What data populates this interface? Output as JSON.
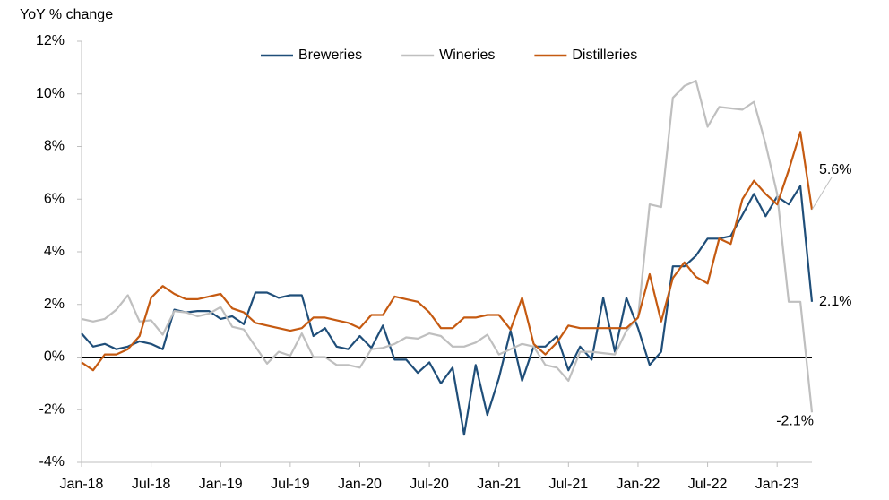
{
  "chart_data": {
    "type": "line",
    "y_axis_label": "YoY % change",
    "categories": [
      "Jan-18",
      null,
      null,
      null,
      null,
      null,
      "Jul-18",
      null,
      null,
      null,
      null,
      null,
      "Jan-19",
      null,
      null,
      null,
      null,
      null,
      "Jul-19",
      null,
      null,
      null,
      null,
      null,
      "Jan-20",
      null,
      null,
      null,
      null,
      null,
      "Jul-20",
      null,
      null,
      null,
      null,
      null,
      "Jan-21",
      null,
      null,
      null,
      null,
      null,
      "Jul-21",
      null,
      null,
      null,
      null,
      null,
      "Jan-22",
      null,
      null,
      null,
      null,
      null,
      "Jul-22",
      null,
      null,
      null,
      null,
      null,
      "Jan-23",
      null,
      null,
      null
    ],
    "series": [
      {
        "name": "Breweries",
        "color": "#1f4e79",
        "values": [
          0.9,
          0.4,
          0.5,
          0.3,
          0.4,
          0.6,
          0.5,
          0.3,
          1.8,
          1.7,
          1.75,
          1.75,
          1.45,
          1.55,
          1.25,
          2.45,
          2.45,
          2.25,
          2.35,
          2.35,
          0.8,
          1.1,
          0.4,
          0.3,
          0.8,
          0.35,
          1.2,
          -0.1,
          -0.1,
          -0.6,
          -0.2,
          -1.0,
          -0.4,
          -2.95,
          -0.3,
          -2.2,
          -0.8,
          1.0,
          -0.9,
          0.4,
          0.4,
          0.8,
          -0.5,
          0.4,
          -0.1,
          2.25,
          0.2,
          2.25,
          1.1,
          -0.3,
          0.2,
          3.45,
          3.45,
          3.85,
          4.5,
          4.5,
          4.6,
          5.4,
          6.2,
          5.35,
          6.1,
          5.8,
          6.5,
          2.1
        ],
        "value_labels": [
          null,
          null,
          null,
          null,
          null,
          null,
          null,
          null,
          null,
          null,
          null,
          null,
          null,
          null,
          null,
          null,
          null,
          null,
          null,
          null,
          null,
          null,
          null,
          null,
          null,
          null,
          null,
          null,
          null,
          null,
          null,
          null,
          null,
          null,
          null,
          null,
          null,
          null,
          null,
          null,
          null,
          null,
          null,
          null,
          null,
          null,
          null,
          null,
          null,
          null,
          null,
          null,
          null,
          null,
          null,
          null,
          null,
          null,
          null,
          null,
          null,
          null,
          null,
          "2.1%"
        ]
      },
      {
        "name": "Wineries",
        "color": "#bfbfbf",
        "values": [
          1.45,
          1.35,
          1.45,
          1.8,
          2.35,
          1.35,
          1.4,
          0.85,
          1.75,
          1.7,
          1.55,
          1.65,
          1.9,
          1.15,
          1.05,
          0.4,
          -0.25,
          0.2,
          0.05,
          0.9,
          0.0,
          0.0,
          -0.3,
          -0.3,
          -0.4,
          0.3,
          0.35,
          0.5,
          0.75,
          0.7,
          0.9,
          0.8,
          0.4,
          0.4,
          0.55,
          0.85,
          0.1,
          0.3,
          0.5,
          0.4,
          -0.3,
          -0.4,
          -0.9,
          0.2,
          0.2,
          0.15,
          0.1,
          1.0,
          1.5,
          5.8,
          5.7,
          9.85,
          10.3,
          10.5,
          8.75,
          9.5,
          9.45,
          9.4,
          9.7,
          8.1,
          6.2,
          2.1,
          2.1,
          -2.1
        ],
        "value_labels": [
          null,
          null,
          null,
          null,
          null,
          null,
          null,
          null,
          null,
          null,
          null,
          null,
          null,
          null,
          null,
          null,
          null,
          null,
          null,
          null,
          null,
          null,
          null,
          null,
          null,
          null,
          null,
          null,
          null,
          null,
          null,
          null,
          null,
          null,
          null,
          null,
          null,
          null,
          null,
          null,
          null,
          null,
          null,
          null,
          null,
          null,
          null,
          null,
          null,
          null,
          null,
          null,
          null,
          null,
          null,
          null,
          null,
          null,
          null,
          null,
          null,
          null,
          null,
          "-2.1%"
        ]
      },
      {
        "name": "Distilleries",
        "color": "#c55a11",
        "values": [
          -0.2,
          -0.5,
          0.1,
          0.1,
          0.3,
          0.8,
          2.25,
          2.7,
          2.4,
          2.2,
          2.2,
          2.3,
          2.4,
          1.85,
          1.7,
          1.3,
          1.2,
          1.1,
          1.0,
          1.1,
          1.5,
          1.5,
          1.4,
          1.3,
          1.1,
          1.6,
          1.6,
          2.3,
          2.2,
          2.1,
          1.7,
          1.1,
          1.1,
          1.5,
          1.5,
          1.6,
          1.6,
          1.05,
          2.25,
          0.5,
          0.1,
          0.55,
          1.2,
          1.1,
          1.1,
          1.1,
          1.1,
          1.1,
          1.5,
          3.15,
          1.35,
          3.0,
          3.6,
          3.05,
          2.8,
          4.5,
          4.3,
          6.0,
          6.7,
          6.2,
          5.8,
          7.1,
          8.55,
          5.6
        ],
        "value_labels": [
          null,
          null,
          null,
          null,
          null,
          null,
          null,
          null,
          null,
          null,
          null,
          null,
          null,
          null,
          null,
          null,
          null,
          null,
          null,
          null,
          null,
          null,
          null,
          null,
          null,
          null,
          null,
          null,
          null,
          null,
          null,
          null,
          null,
          null,
          null,
          null,
          null,
          null,
          null,
          null,
          null,
          null,
          null,
          null,
          null,
          null,
          null,
          null,
          null,
          null,
          null,
          null,
          null,
          null,
          null,
          null,
          null,
          null,
          null,
          null,
          null,
          null,
          null,
          "5.6%"
        ]
      }
    ],
    "ylim": [
      -4,
      12
    ],
    "yticks": [
      {
        "value": -4,
        "label": "-4%"
      },
      {
        "value": -2,
        "label": "-2%"
      },
      {
        "value": 0,
        "label": "0%"
      },
      {
        "value": 2,
        "label": "2%"
      },
      {
        "value": 4,
        "label": "4%"
      },
      {
        "value": 6,
        "label": "6%"
      },
      {
        "value": 8,
        "label": "8%"
      },
      {
        "value": 10,
        "label": "10%"
      },
      {
        "value": 12,
        "label": "12%"
      }
    ],
    "grid": false,
    "legend": "top"
  }
}
